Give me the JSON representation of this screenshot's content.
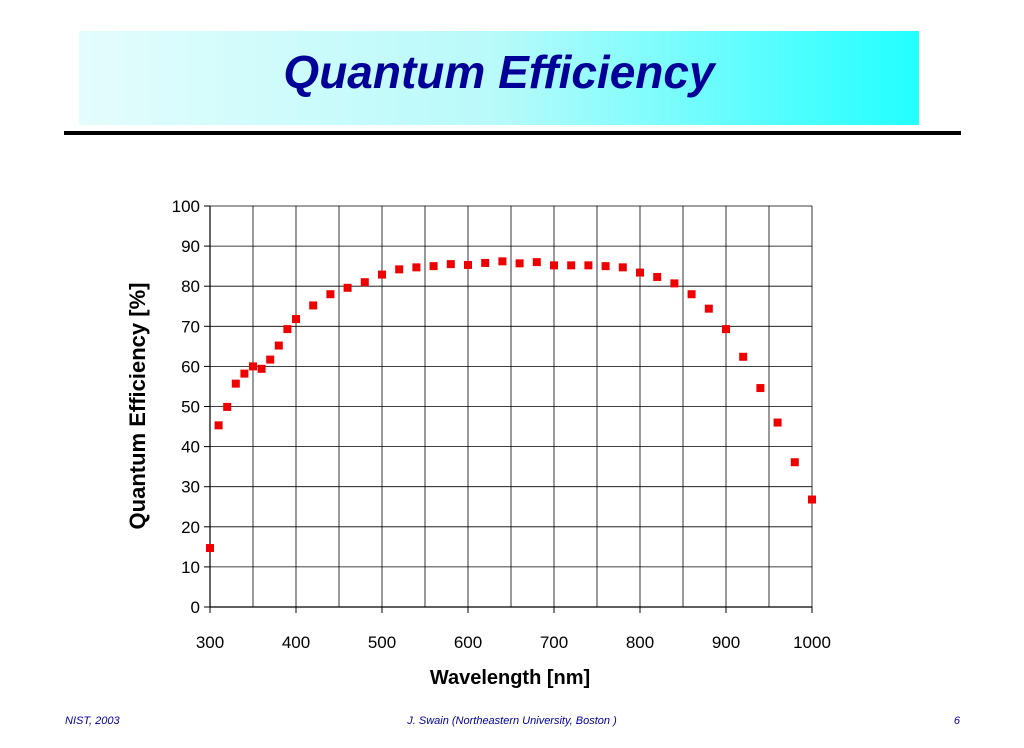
{
  "slide": {
    "title": "Quantum Efficiency",
    "footer_left": "NIST, 2003",
    "footer_center": "J. Swain (Northeastern University, Boston )",
    "footer_right": "6"
  },
  "colors": {
    "title": "#000099",
    "marker": "#ee0000",
    "banner_start": "#e4fcfc",
    "banner_end": "#22ffff"
  },
  "chart_data": {
    "type": "scatter",
    "title": "",
    "xlabel": "Wavelength [nm]",
    "ylabel": "Quantum Efficiency [%]",
    "xlim": [
      300,
      1000
    ],
    "ylim": [
      0,
      100
    ],
    "x_ticks": [
      300,
      400,
      500,
      600,
      700,
      800,
      900,
      1000
    ],
    "y_ticks": [
      0,
      10,
      20,
      30,
      40,
      50,
      60,
      70,
      80,
      90,
      100
    ],
    "x_grid_step": 50,
    "grid": true,
    "legend": "none",
    "marker": "square",
    "series": [
      {
        "points": [
          [
            300,
            14.7
          ],
          [
            310,
            45.3
          ],
          [
            320,
            49.9
          ],
          [
            330,
            55.7
          ],
          [
            340,
            58.2
          ],
          [
            350,
            60.0
          ],
          [
            360,
            59.4
          ],
          [
            370,
            61.7
          ],
          [
            380,
            65.2
          ],
          [
            390,
            69.3
          ],
          [
            400,
            71.8
          ],
          [
            420,
            75.2
          ],
          [
            440,
            78.0
          ],
          [
            460,
            79.6
          ],
          [
            480,
            81.0
          ],
          [
            500,
            82.9
          ],
          [
            520,
            84.2
          ],
          [
            540,
            84.7
          ],
          [
            560,
            85.0
          ],
          [
            580,
            85.5
          ],
          [
            600,
            85.3
          ],
          [
            620,
            85.8
          ],
          [
            640,
            86.2
          ],
          [
            660,
            85.7
          ],
          [
            680,
            86.0
          ],
          [
            700,
            85.2
          ],
          [
            720,
            85.2
          ],
          [
            740,
            85.2
          ],
          [
            760,
            85.0
          ],
          [
            780,
            84.7
          ],
          [
            800,
            83.4
          ],
          [
            820,
            82.3
          ],
          [
            840,
            80.7
          ],
          [
            860,
            78.0
          ],
          [
            880,
            74.4
          ],
          [
            900,
            69.3
          ],
          [
            920,
            62.4
          ],
          [
            940,
            54.6
          ],
          [
            960,
            46.0
          ],
          [
            980,
            36.1
          ],
          [
            1000,
            26.8
          ]
        ]
      }
    ]
  }
}
